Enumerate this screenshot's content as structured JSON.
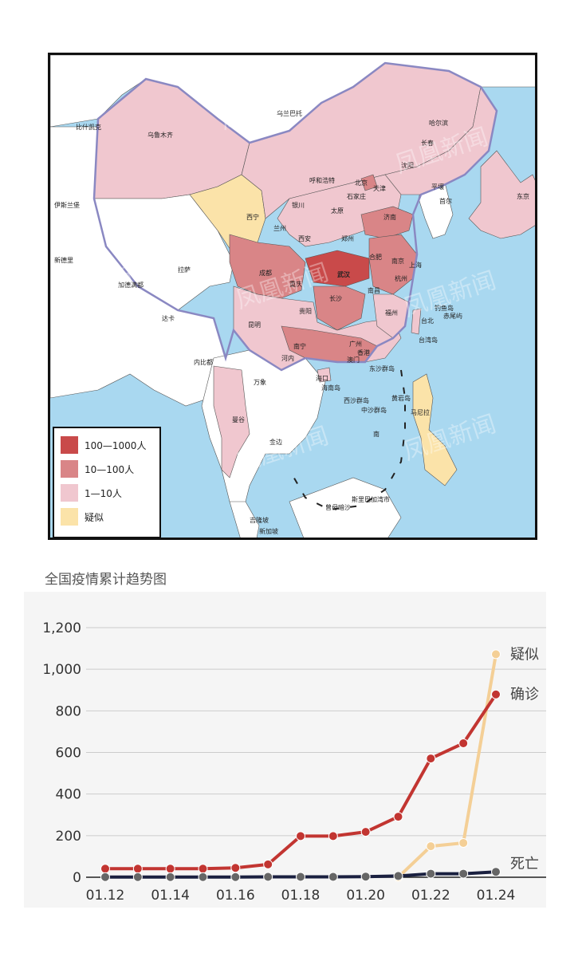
{
  "map": {
    "labels": {
      "wulumuqi": "乌鲁木齐",
      "wulanbatuo": "乌兰巴托",
      "haerbin": "哈尔滨",
      "changchun": "长春",
      "shenyang": "沈阳",
      "huhehaote": "呼和浩特",
      "beijing": "北京",
      "tianjin": "天津",
      "shijiazhuang": "石家庄",
      "yinchuan": "银川",
      "taiyuan": "太原",
      "jinan": "济南",
      "xining": "西宁",
      "lanzhou": "兰州",
      "zhengzhou": "郑州",
      "xian": "西安",
      "hefei": "合肥",
      "nanjing": "南京",
      "shanghai": "上海",
      "chengdu": "成都",
      "chongqing": "重庆",
      "wuhan": "武汉",
      "hangzhou": "杭州",
      "changsha": "长沙",
      "nanchang": "南昌",
      "fuzhou": "福州",
      "guiyang": "贵阳",
      "kunming": "昆明",
      "nanning": "南宁",
      "guangzhou": "广州",
      "xianggang": "香港",
      "aomen": "澳门",
      "taibei": "台北",
      "haikou": "海口",
      "lasa": "拉萨",
      "pyongyang": "平壤",
      "seoul": "首尔",
      "tokyo": "东京",
      "xindeli": "新德里",
      "kathmandu": "加德满都",
      "islamabad": "伊斯兰堡",
      "bishkek": "比什凯克",
      "dhaka": "达卡",
      "naypyidaw": "内比都",
      "vientiane": "万象",
      "hanoi": "河内",
      "bangkok": "曼谷",
      "phnompenh": "金边",
      "manila": "马尼拉",
      "kualalumpur": "吉隆坡",
      "singapore": "新加坡",
      "bandar": "斯里巴加湾市",
      "taiwan": "台湾岛",
      "hainan": "海南岛",
      "dongsha": "东沙群岛",
      "xisha": "西沙群岛",
      "zhongsha": "中沙群岛",
      "huangyan": "黄岩岛",
      "diaoyu": "钓鱼岛",
      "chiwei": "赤尾屿",
      "zengmu": "曾母暗沙",
      "nanhai": "南"
    },
    "watermark": "凤凰新闻",
    "legend": [
      {
        "label": "100—1000人",
        "color": "#c94a4a"
      },
      {
        "label": "10—100人",
        "color": "#d98587"
      },
      {
        "label": "1—10人",
        "color": "#f0c7cf"
      },
      {
        "label": "疑似",
        "color": "#fbe3a9"
      }
    ],
    "region_colors": {
      "tier1": "#c94a4a",
      "tier2": "#d98587",
      "tier3": "#f0c7cf",
      "suspected": "#fbe3a9",
      "foreign": "#ffffff",
      "sea": "#a9d8f0"
    }
  },
  "chart_title": "全国疫情累计趋势图",
  "chart_data": {
    "type": "line",
    "title": "全国疫情累计趋势图",
    "categories": [
      "01.12",
      "01.13",
      "01.14",
      "01.15",
      "01.16",
      "01.17",
      "01.18",
      "01.19",
      "01.20",
      "01.21",
      "01.22",
      "01.23",
      "01.24"
    ],
    "tick_labels": [
      "01.12",
      "01.14",
      "01.16",
      "01.18",
      "01.20",
      "01.22",
      "01.24"
    ],
    "y_ticks": [
      "0",
      "200",
      "400",
      "600",
      "800",
      "1,000",
      "1,200"
    ],
    "ylim": [
      0,
      1200
    ],
    "grid": true,
    "series": [
      {
        "name": "确诊",
        "color": "#c23531",
        "values": [
          41,
          41,
          41,
          41,
          45,
          62,
          198,
          198,
          218,
          291,
          571,
          644,
          879
        ]
      },
      {
        "name": "疑似",
        "color": "#f4cf96",
        "values": [
          null,
          null,
          null,
          null,
          null,
          null,
          null,
          null,
          null,
          0,
          149,
          165,
          1072
        ]
      },
      {
        "name": "死亡",
        "color": "#1a2040",
        "values": [
          1,
          1,
          1,
          1,
          1,
          2,
          2,
          2,
          3,
          6,
          17,
          17,
          26
        ]
      }
    ]
  }
}
